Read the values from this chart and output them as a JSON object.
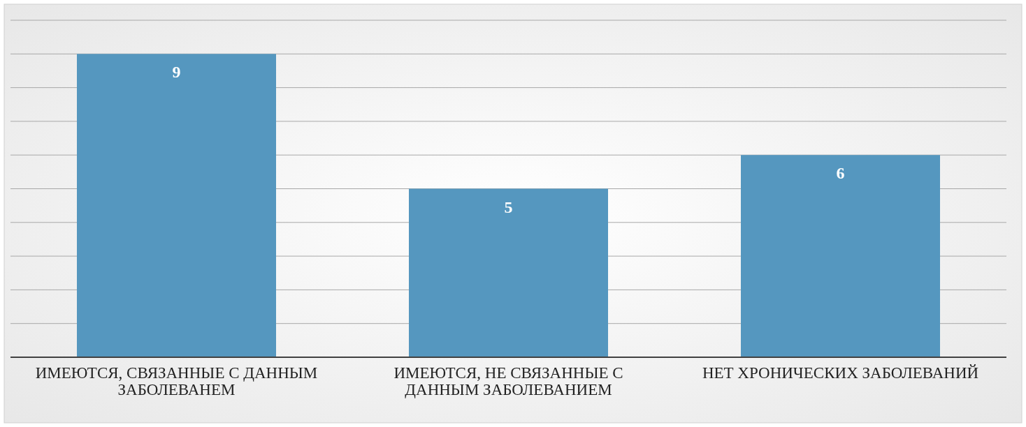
{
  "chart_data": {
    "type": "bar",
    "categories": [
      "ИМЕЮТСЯ, СВЯЗАННЫЕ С ДАННЫМ ЗАБОЛЕВАНЕМ",
      "ИМЕЮТСЯ, НЕ СВЯЗАННЫЕ С ДАННЫМ ЗАБОЛЕВАНИЕМ",
      "НЕТ ХРОНИЧЕСКИХ ЗАБОЛЕВАНИЙ"
    ],
    "values": [
      9,
      5,
      6
    ],
    "color": "#5597bf",
    "ylim": [
      0,
      10
    ],
    "yticks": [
      {
        "value": 0,
        "label": null
      },
      {
        "value": 1,
        "label": null
      },
      {
        "value": 2,
        "label": null
      },
      {
        "value": 3,
        "label": null
      },
      {
        "value": 4,
        "label": null
      },
      {
        "value": 5,
        "label": null
      },
      {
        "value": 6,
        "label": null
      },
      {
        "value": 7,
        "label": null
      },
      {
        "value": 8,
        "label": null
      },
      {
        "value": 9,
        "label": null
      },
      {
        "value": 10,
        "label": null
      }
    ],
    "tick_labels": "x",
    "grid": "y",
    "data_labels": true
  }
}
